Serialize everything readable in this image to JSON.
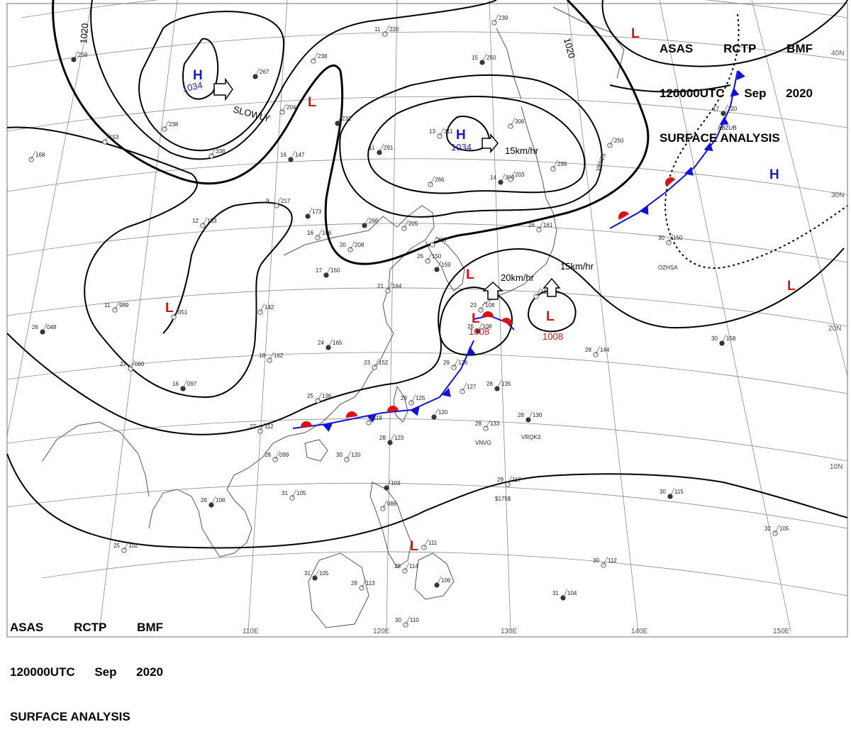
{
  "header": {
    "line1": [
      "ASAS",
      "RCTP",
      "BMF"
    ],
    "line2": [
      "120000UTC",
      "Sep",
      "2020"
    ],
    "line3": "SURFACE ANALYSIS"
  },
  "colors": {
    "high": "#1a1acc",
    "low": "#e01010",
    "cold_front": "#1010e0",
    "warm_front": "#e01010",
    "isobar": "#000000",
    "grid": "#8a8a8a",
    "coast": "#555555"
  },
  "grid_labels": {
    "lat": [
      "40N",
      "30N",
      "20N",
      "10N"
    ],
    "lon": [
      "110E",
      "120E",
      "130E",
      "140E",
      "150E"
    ]
  },
  "isobar_labels": [
    "1020",
    "1020"
  ],
  "pressure_centers": [
    {
      "type": "H",
      "value": "1034"
    },
    {
      "type": "H",
      "value": "1034"
    },
    {
      "type": "H",
      "value": ""
    },
    {
      "type": "L",
      "value": ""
    },
    {
      "type": "L",
      "value": ""
    },
    {
      "type": "L",
      "value": ""
    },
    {
      "type": "L",
      "value": ""
    },
    {
      "type": "L",
      "value": "1008"
    },
    {
      "type": "L",
      "value": "1008"
    },
    {
      "type": "L",
      "value": ""
    },
    {
      "type": "L",
      "value": ""
    }
  ],
  "motion_labels": [
    "SLOWLY",
    "15km/hr",
    "20km/hr",
    "15km/hr"
  ],
  "stations": [
    {
      "temp": "",
      "pres": "267"
    },
    {
      "temp": "",
      "pres": "238"
    },
    {
      "temp": "",
      "pres": "204"
    },
    {
      "temp": "",
      "pres": "232"
    },
    {
      "temp": "11",
      "pres": "220"
    },
    {
      "temp": "",
      "pres": "239"
    },
    {
      "temp": "15",
      "pres": "250"
    },
    {
      "temp": "",
      "pres": "306"
    },
    {
      "temp": "13",
      "pres": "311"
    },
    {
      "temp": "11",
      "pres": "291"
    },
    {
      "temp": "",
      "pres": "299"
    },
    {
      "temp": "",
      "pres": "266"
    },
    {
      "temp": "14",
      "pres": "303"
    },
    {
      "temp": "",
      "pres": "238"
    },
    {
      "temp": "",
      "pres": "338"
    },
    {
      "temp": "16",
      "pres": "147"
    },
    {
      "temp": "9",
      "pres": "217"
    },
    {
      "temp": "12",
      "pres": "183"
    },
    {
      "temp": "",
      "pres": "173"
    },
    {
      "temp": "16",
      "pres": "186"
    },
    {
      "temp": "20",
      "pres": "208"
    },
    {
      "temp": "",
      "pres": "266"
    },
    {
      "temp": "",
      "pres": "205"
    },
    {
      "temp": "",
      "pres": "208"
    },
    {
      "temp": "",
      "pres": "159"
    },
    {
      "temp": "26",
      "pres": "150"
    },
    {
      "temp": "21",
      "pres": "164"
    },
    {
      "temp": "17",
      "pres": "150"
    },
    {
      "temp": "11",
      "pres": "989"
    },
    {
      "temp": "",
      "pres": "051"
    },
    {
      "temp": "26",
      "pres": "048"
    },
    {
      "temp": "27",
      "pres": "060"
    },
    {
      "temp": "",
      "pres": "142"
    },
    {
      "temp": "24",
      "pres": "165"
    },
    {
      "temp": "18",
      "pres": "162"
    },
    {
      "temp": "23",
      "pres": "152"
    },
    {
      "temp": "16",
      "pres": "097"
    },
    {
      "temp": "25",
      "pres": "136"
    },
    {
      "temp": "29",
      "pres": "125"
    },
    {
      "temp": "",
      "pres": "120"
    },
    {
      "temp": "27",
      "pres": "112"
    },
    {
      "temp": "",
      "pres": "119"
    },
    {
      "temp": "28",
      "pres": "123"
    },
    {
      "temp": "30",
      "pres": "120"
    },
    {
      "temp": "28",
      "pres": "099"
    },
    {
      "temp": "26",
      "pres": "108"
    },
    {
      "temp": "31",
      "pres": "105"
    },
    {
      "temp": "25",
      "pres": "102"
    },
    {
      "temp": "",
      "pres": "103"
    },
    {
      "temp": "",
      "pres": "086"
    },
    {
      "temp": "",
      "pres": "111"
    },
    {
      "temp": "31",
      "pres": "105"
    },
    {
      "temp": "28",
      "pres": "113"
    },
    {
      "temp": "28",
      "pres": "114"
    },
    {
      "temp": "",
      "pres": "106"
    },
    {
      "temp": "30",
      "pres": "110"
    },
    {
      "temp": "",
      "pres": "127"
    },
    {
      "temp": "28",
      "pres": "135"
    },
    {
      "temp": "29",
      "pres": "126"
    },
    {
      "temp": "28",
      "pres": "133"
    },
    {
      "temp": "28",
      "pres": "130"
    },
    {
      "temp": "29",
      "pres": "117"
    },
    {
      "temp": "23",
      "pres": "108"
    },
    {
      "temp": "26",
      "pres": "108"
    },
    {
      "temp": "",
      "pres": "111"
    },
    {
      "temp": "28",
      "pres": "144"
    },
    {
      "temp": "30",
      "pres": "158"
    },
    {
      "temp": "30",
      "pres": "150"
    },
    {
      "temp": "26",
      "pres": "161"
    },
    {
      "temp": "17",
      "pres": "220"
    },
    {
      "temp": "",
      "pres": "250"
    },
    {
      "temp": "",
      "pres": "203"
    },
    {
      "temp": "30",
      "pres": "115"
    },
    {
      "temp": "32",
      "pres": "105"
    },
    {
      "temp": "30",
      "pres": "112"
    },
    {
      "temp": "31",
      "pres": "104"
    },
    {
      "temp": "",
      "pres": "153"
    },
    {
      "temp": "",
      "pres": "168"
    },
    {
      "temp": "",
      "pres": "258"
    }
  ],
  "ship_ids": [
    "VRNZ5",
    "ABZUB",
    "OZHSA",
    "VNVG",
    "VRQK3",
    "$175$"
  ]
}
